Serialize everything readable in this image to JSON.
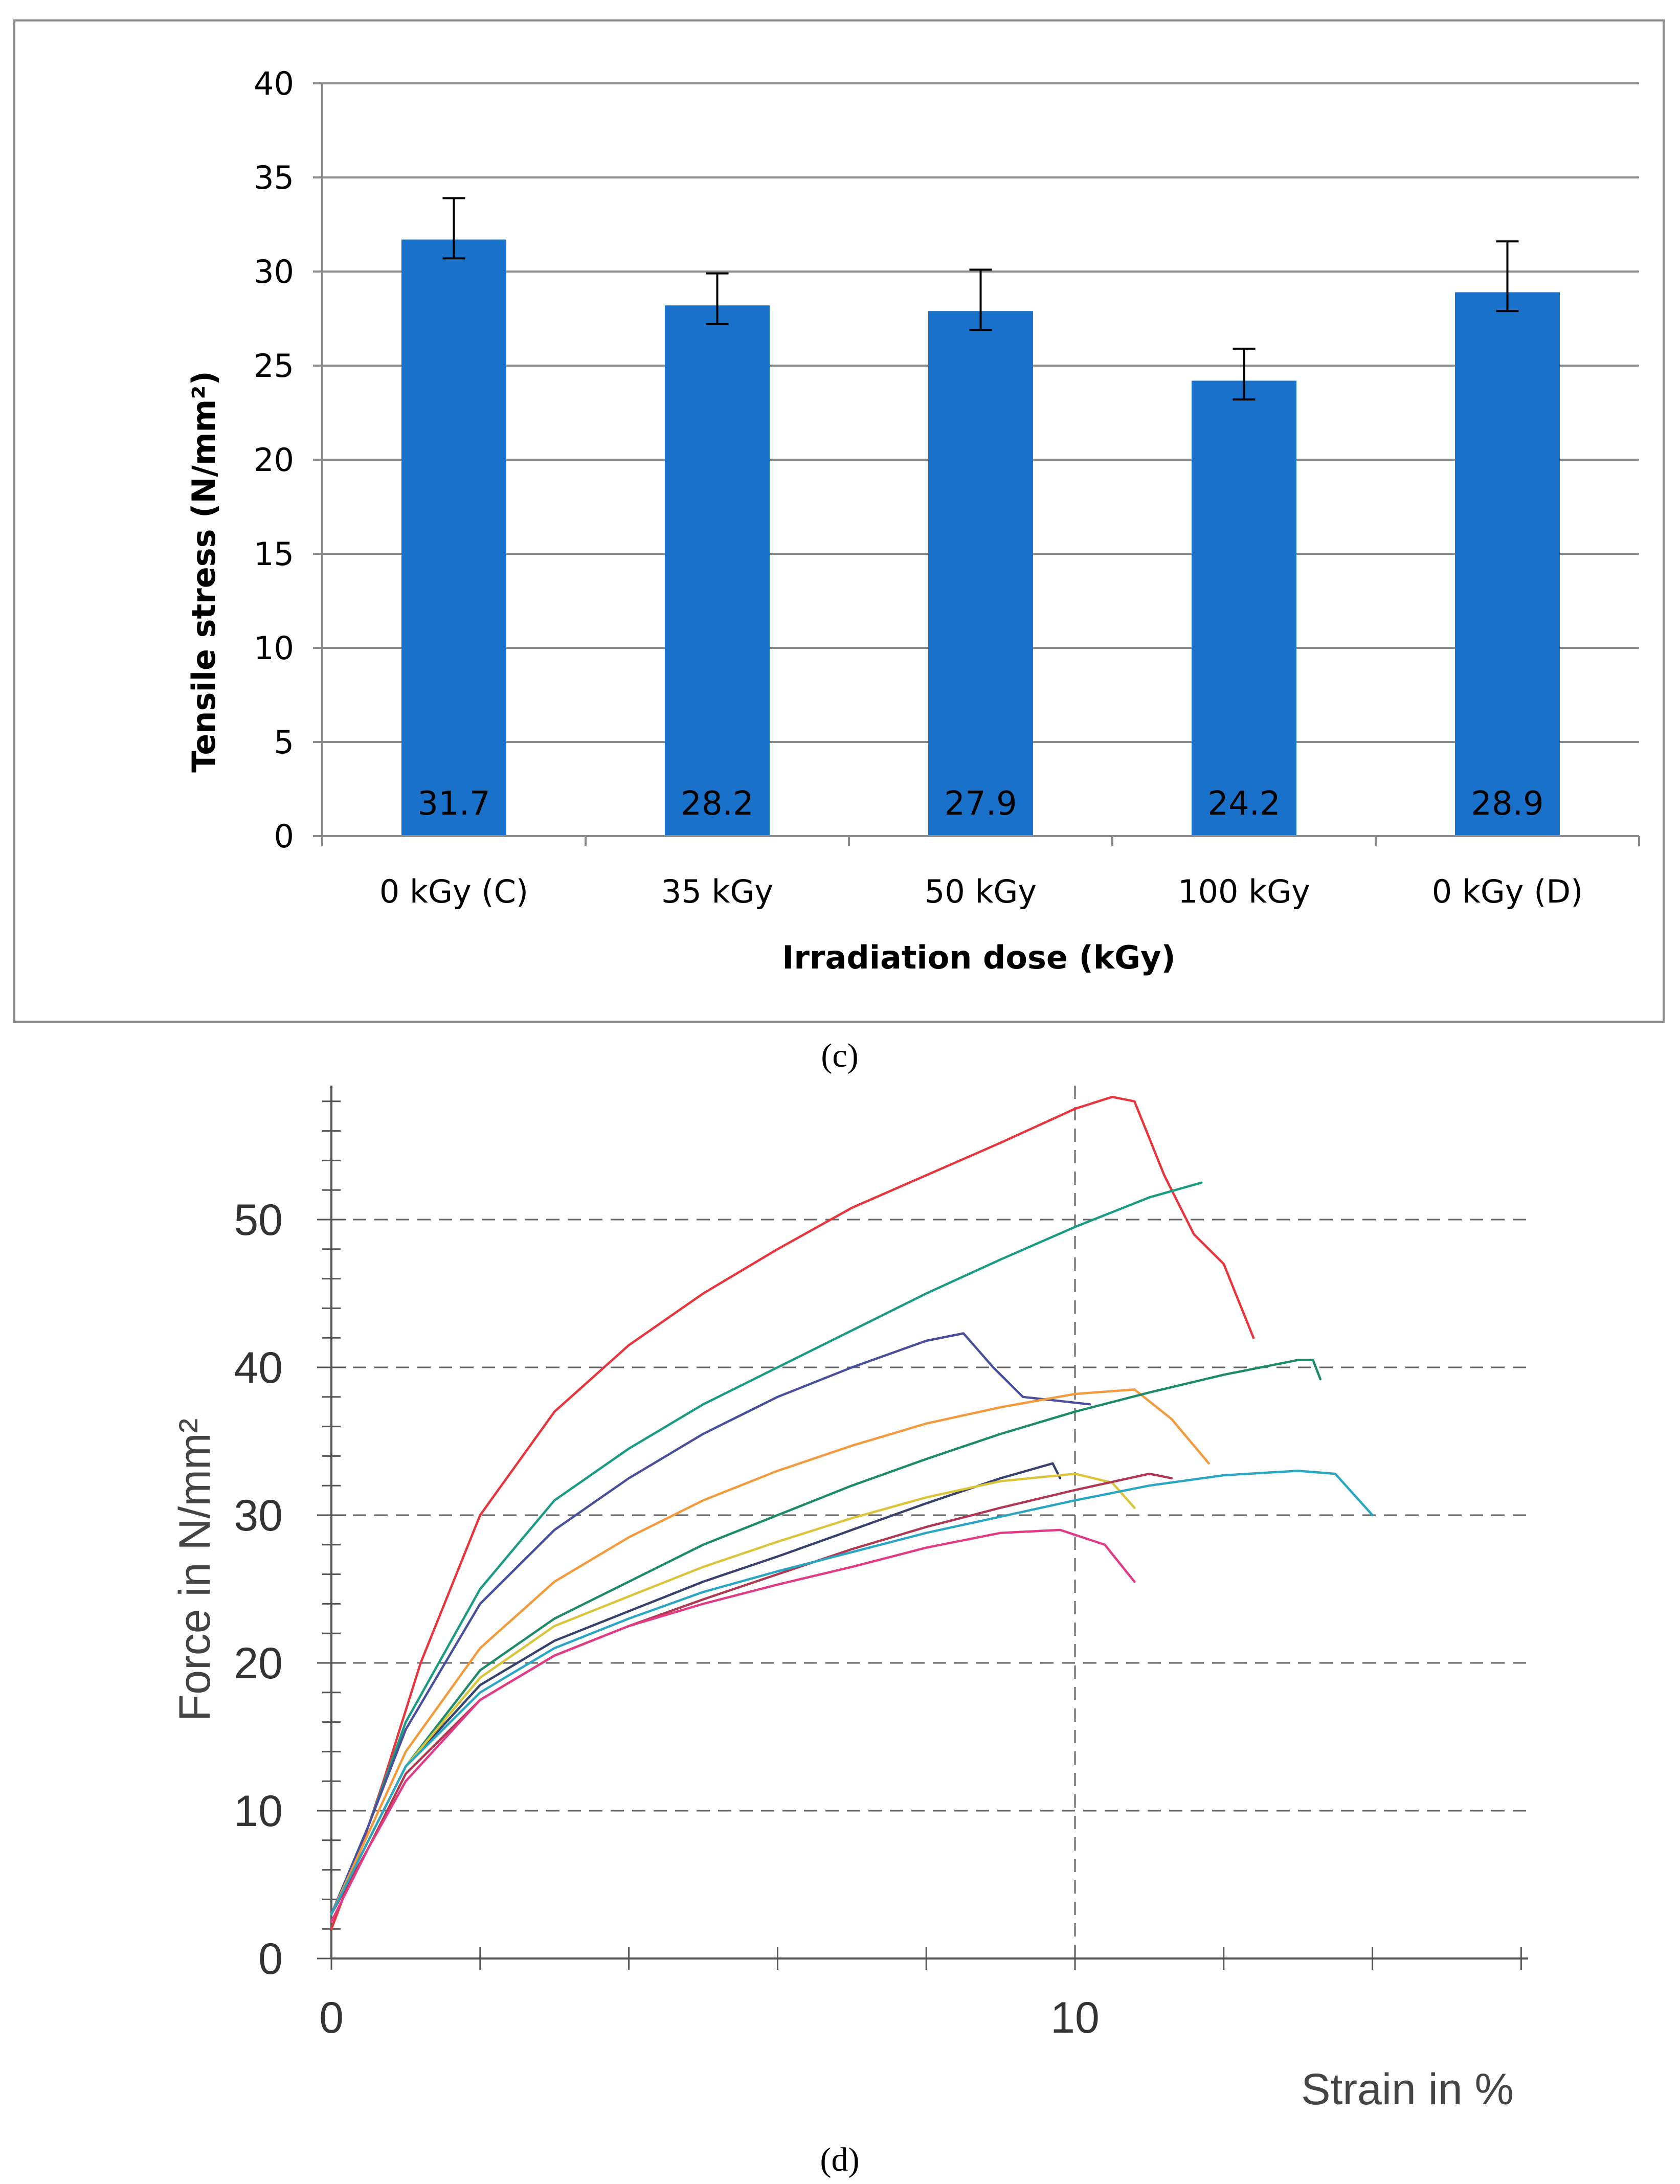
{
  "chart_data": [
    {
      "id": "c",
      "type": "bar",
      "panel_label": "(c)",
      "title": "",
      "xlabel": "Irradiation dose (kGy)",
      "ylabel": "Tensile stress (N/mm²)",
      "ylim": [
        0,
        40
      ],
      "yticks": [
        "0",
        "5",
        "10",
        "15",
        "20",
        "25",
        "30",
        "35",
        "40"
      ],
      "grid": true,
      "categories": [
        "0 kGy (C)",
        "35 kGy",
        "50 kGy",
        "100 kGy",
        "0 kGy (D)"
      ],
      "values": [
        31.7,
        28.2,
        27.9,
        24.2,
        28.9
      ],
      "value_labels": [
        "31.7",
        "28.2",
        "27.9",
        "24.2",
        "28.9"
      ],
      "error_low": [
        30.7,
        27.2,
        26.9,
        23.2,
        27.9
      ],
      "error_high": [
        33.9,
        29.9,
        30.1,
        25.9,
        31.6
      ],
      "bar_color": "#1971c9"
    },
    {
      "id": "d",
      "type": "line",
      "panel_label": "(d)",
      "title": "",
      "xlabel": "Strain in %",
      "ylabel": "Force in N/mm²",
      "xlim": [
        0,
        16
      ],
      "ylim": [
        0,
        58
      ],
      "xticks": [
        "0",
        "10"
      ],
      "yticks": [
        "0",
        "10",
        "20",
        "30",
        "40",
        "50"
      ],
      "grid": "dashed",
      "series": [
        {
          "name": "red",
          "color": "#e8343c",
          "x": [
            0,
            0.3,
            0.7,
            1.2,
            2,
            3,
            4,
            5,
            6,
            7,
            8,
            9,
            10,
            10.5,
            10.8,
            11.2,
            11.6,
            12,
            12.4
          ],
          "y": [
            2,
            6,
            12,
            20,
            30,
            37,
            41.5,
            45,
            48,
            50.8,
            53,
            55.2,
            57.5,
            58.3,
            58,
            53,
            49,
            47,
            42
          ]
        },
        {
          "name": "teal",
          "color": "#1a9b82",
          "x": [
            0,
            0.5,
            1,
            2,
            3,
            4,
            5,
            6,
            7,
            8,
            9,
            10,
            11,
            11.7
          ],
          "y": [
            3,
            9,
            16,
            25,
            31,
            34.5,
            37.5,
            40,
            42.5,
            45,
            47.3,
            49.5,
            51.5,
            52.5
          ]
        },
        {
          "name": "indigo",
          "color": "#4a4f9c",
          "x": [
            0,
            0.5,
            1,
            2,
            3,
            4,
            5,
            6,
            7,
            8,
            8.5,
            8.9,
            9.3,
            10.2
          ],
          "y": [
            3,
            9,
            15.5,
            24,
            29,
            32.5,
            35.5,
            38,
            40,
            41.8,
            42.3,
            40,
            38,
            37.5
          ]
        },
        {
          "name": "orange",
          "color": "#f39a3c",
          "x": [
            0,
            0.5,
            1,
            2,
            3,
            4,
            5,
            6,
            7,
            8,
            9,
            10,
            10.8,
            11.3,
            11.8
          ],
          "y": [
            3,
            8.5,
            14,
            21,
            25.5,
            28.5,
            31,
            33,
            34.7,
            36.2,
            37.3,
            38.2,
            38.5,
            36.5,
            33.5
          ]
        },
        {
          "name": "dark green",
          "color": "#1d8a69",
          "x": [
            0,
            0.5,
            1,
            2,
            3,
            4,
            5,
            6,
            7,
            8,
            9,
            10,
            11,
            12,
            13,
            13.2,
            13.3
          ],
          "y": [
            3,
            8,
            13,
            19.5,
            23,
            25.5,
            28,
            30,
            32,
            33.8,
            35.5,
            37,
            38.3,
            39.5,
            40.5,
            40.5,
            39.2
          ]
        },
        {
          "name": "navy",
          "color": "#36416c",
          "x": [
            0,
            0.5,
            1,
            2,
            3,
            4,
            5,
            6,
            7,
            8,
            9,
            9.7,
            9.8
          ],
          "y": [
            3,
            8,
            13,
            18.5,
            21.5,
            23.5,
            25.5,
            27.2,
            29,
            30.8,
            32.5,
            33.5,
            32.5
          ]
        },
        {
          "name": "yellow",
          "color": "#d9c43a",
          "x": [
            0,
            0.5,
            1,
            2,
            3,
            4,
            5,
            6,
            7,
            8,
            9,
            10,
            10.5,
            10.8
          ],
          "y": [
            3,
            8,
            13,
            19,
            22.5,
            24.5,
            26.5,
            28.2,
            29.8,
            31.2,
            32.3,
            32.8,
            32.2,
            30.5
          ]
        },
        {
          "name": "maroon",
          "color": "#b03850",
          "x": [
            0,
            0.5,
            1,
            2,
            3,
            4,
            5,
            6,
            7,
            8,
            9,
            10,
            11,
            11.3
          ],
          "y": [
            3,
            7.5,
            12.5,
            17.5,
            20.5,
            22.5,
            24.3,
            26,
            27.7,
            29.2,
            30.5,
            31.7,
            32.8,
            32.5
          ]
        },
        {
          "name": "cyan",
          "color": "#2aa5c4",
          "x": [
            0,
            0.5,
            1,
            2,
            3,
            4,
            5,
            6,
            7,
            8,
            9,
            10,
            11,
            12,
            13,
            13.5,
            14
          ],
          "y": [
            3,
            8,
            13,
            18,
            21,
            23,
            24.8,
            26.2,
            27.5,
            28.8,
            29.9,
            31,
            32,
            32.7,
            33,
            32.8,
            30
          ]
        },
        {
          "name": "pink",
          "color": "#e23b86",
          "x": [
            0,
            0.5,
            1,
            2,
            3,
            4,
            5,
            6,
            7,
            8,
            9,
            9.8,
            10.4,
            10.8
          ],
          "y": [
            2.5,
            7.5,
            12,
            17.5,
            20.5,
            22.5,
            24,
            25.3,
            26.5,
            27.8,
            28.8,
            29,
            28,
            25.5
          ]
        }
      ]
    }
  ]
}
